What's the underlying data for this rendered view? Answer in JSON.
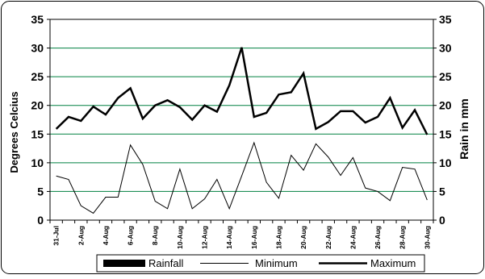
{
  "chart_data": {
    "type": "line",
    "ylabel_left": "Degrees Celcius",
    "ylabel_right": "Rain in mm",
    "ylim": [
      0,
      35
    ],
    "yticks": [
      0,
      5,
      10,
      15,
      20,
      25,
      30,
      35
    ],
    "x": [
      "31-Jul",
      "1-Aug",
      "2-Aug",
      "3-Aug",
      "4-Aug",
      "5-Aug",
      "6-Aug",
      "7-Aug",
      "8-Aug",
      "9-Aug",
      "10-Aug",
      "11-Aug",
      "12-Aug",
      "13-Aug",
      "14-Aug",
      "15-Aug",
      "16-Aug",
      "17-Aug",
      "18-Aug",
      "19-Aug",
      "20-Aug",
      "21-Aug",
      "22-Aug",
      "23-Aug",
      "24-Aug",
      "25-Aug",
      "26-Aug",
      "27-Aug",
      "28-Aug",
      "29-Aug",
      "30-Aug"
    ],
    "xtick_labels": [
      "31-Jul",
      "2-Aug",
      "4-Aug",
      "6-Aug",
      "8-Aug",
      "10-Aug",
      "12-Aug",
      "14-Aug",
      "16-Aug",
      "18-Aug",
      "20-Aug",
      "22-Aug",
      "24-Aug",
      "26-Aug",
      "28-Aug",
      "30-Aug"
    ],
    "series": [
      {
        "name": "Rainfall",
        "values": [
          0,
          0,
          0,
          0,
          0,
          0,
          0,
          0,
          0,
          0,
          0,
          0,
          0,
          0,
          0,
          0,
          0,
          0,
          0,
          0,
          0,
          0,
          0,
          0,
          0,
          0,
          0,
          0,
          0,
          0,
          0
        ]
      },
      {
        "name": "Minimum",
        "values": [
          7.7,
          7.1,
          2.5,
          1.2,
          4.0,
          4.0,
          13.1,
          9.7,
          3.3,
          2.0,
          8.9,
          2.0,
          3.7,
          7.1,
          2.0,
          7.7,
          13.5,
          6.6,
          3.8,
          11.3,
          8.7,
          13.3,
          11.0,
          7.8,
          10.9,
          5.6,
          5.0,
          3.4,
          9.2,
          8.9,
          3.5
        ]
      },
      {
        "name": "Maximum",
        "values": [
          15.9,
          18.0,
          17.3,
          19.8,
          18.4,
          21.3,
          23.0,
          17.7,
          20.0,
          20.9,
          19.7,
          17.5,
          20.0,
          18.9,
          23.5,
          30.1,
          18.0,
          18.7,
          21.9,
          22.3,
          25.6,
          15.9,
          17.1,
          19.0,
          19.0,
          17.0,
          18.0,
          21.3,
          16.1,
          19.2,
          14.9
        ]
      }
    ],
    "grid": true,
    "legend_position": "bottom"
  },
  "colors": {
    "gridline": "#008040",
    "line": "#000000",
    "frame": "#000000"
  }
}
